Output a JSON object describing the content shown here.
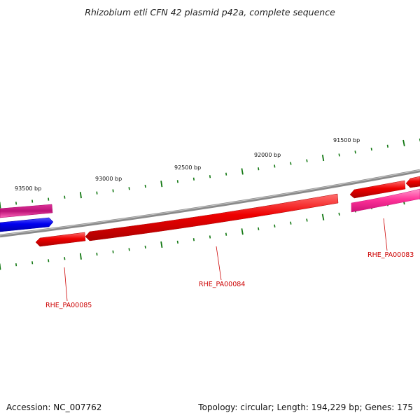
{
  "title": "Rhizobium etli CFN 42 plasmid p42a, complete sequence",
  "footer": {
    "accession": "Accession: NC_007762",
    "summary": "Topology: circular; Length: 194,229 bp; Genes: 175"
  },
  "scale": {
    "unit": "bp",
    "labels": [
      "93500 bp",
      "93000 bp",
      "92500 bp",
      "92000 bp",
      "91500 bp"
    ]
  },
  "genes": [
    {
      "id": "RHE_PA00085",
      "strand": "minus",
      "color": "#ee0000"
    },
    {
      "id": "RHE_PA00084",
      "strand": "minus",
      "color": "#ee0000"
    },
    {
      "id": "RHE_PA00083",
      "strand": "plus",
      "color": "#ff3399"
    }
  ],
  "colors": {
    "backbone": "#777777",
    "tick": "#117711",
    "gene_red": "#ee0000",
    "gene_pink": "#ff3399",
    "gene_blue": "#0000ee",
    "label": "#cc0000"
  }
}
